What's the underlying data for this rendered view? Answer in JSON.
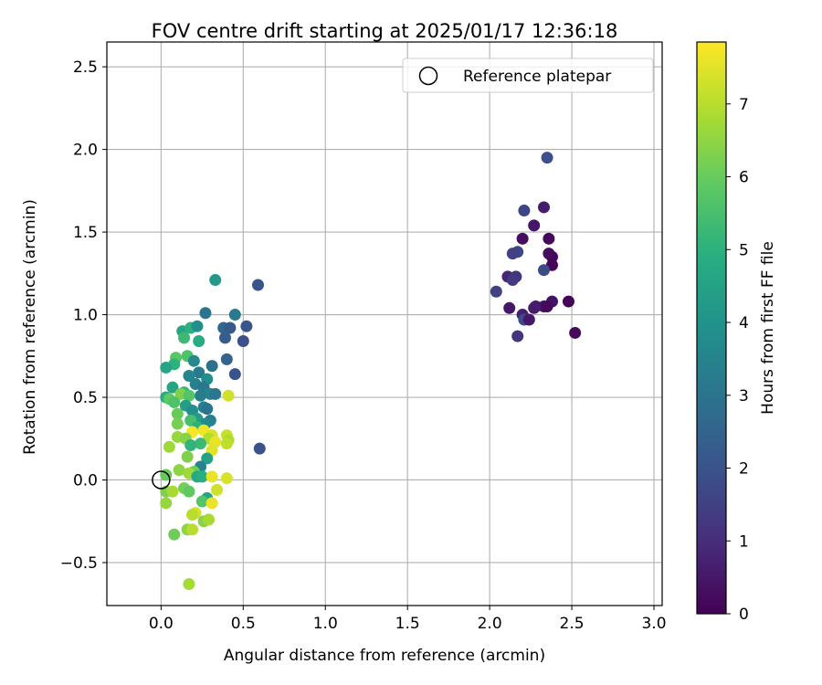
{
  "chart_data": {
    "type": "scatter",
    "title": "FOV centre drift starting at 2025/01/17 12:36:18",
    "xlabel": "Angular distance from reference (arcmin)",
    "ylabel": "Rotation from reference (arcmin)",
    "xlim": [
      -0.33,
      3.05
    ],
    "ylim": [
      -0.76,
      2.65
    ],
    "xticks": [
      0.0,
      0.5,
      1.0,
      1.5,
      2.0,
      2.5,
      3.0
    ],
    "xtick_labels": [
      "0.0",
      "0.5",
      "1.0",
      "1.5",
      "2.0",
      "2.5",
      "3.0"
    ],
    "yticks": [
      -0.5,
      0.0,
      0.5,
      1.0,
      1.5,
      2.0,
      2.5
    ],
    "ytick_labels": [
      "−0.5",
      "0.0",
      "0.5",
      "1.0",
      "1.5",
      "2.0",
      "2.5"
    ],
    "grid": true,
    "legend": {
      "position": "upper-right",
      "entries": [
        "Reference platepar"
      ]
    },
    "reference": {
      "x": 0.0,
      "y": 0.0
    },
    "colorbar": {
      "label": "Hours from first FF file",
      "range": [
        0,
        7.85
      ],
      "ticks": [
        0,
        1,
        2,
        3,
        4,
        5,
        6,
        7
      ],
      "tick_labels": [
        "0",
        "1",
        "2",
        "3",
        "4",
        "5",
        "6",
        "7"
      ],
      "colormap": "viridis"
    },
    "points": [
      [
        2.35,
        1.95,
        1.9
      ],
      [
        2.21,
        1.63,
        1.6
      ],
      [
        2.33,
        1.65,
        0.6
      ],
      [
        2.27,
        1.54,
        0.5
      ],
      [
        2.2,
        1.46,
        0.3
      ],
      [
        2.36,
        1.46,
        0.2
      ],
      [
        2.17,
        1.38,
        1.7
      ],
      [
        2.14,
        1.37,
        1.5
      ],
      [
        2.36,
        1.37,
        0.3
      ],
      [
        2.38,
        1.35,
        0.2
      ],
      [
        2.38,
        1.3,
        0.1
      ],
      [
        2.33,
        1.27,
        1.8
      ],
      [
        2.11,
        1.23,
        0.8
      ],
      [
        2.16,
        1.23,
        1.2
      ],
      [
        2.14,
        1.21,
        1.3
      ],
      [
        2.04,
        1.14,
        1.5
      ],
      [
        2.38,
        1.08,
        0.4
      ],
      [
        2.48,
        1.08,
        0.1
      ],
      [
        2.33,
        1.05,
        0.4
      ],
      [
        2.28,
        1.05,
        0.5
      ],
      [
        2.27,
        1.04,
        0.6
      ],
      [
        2.12,
        1.04,
        0.5
      ],
      [
        2.35,
        1.05,
        0.2
      ],
      [
        2.2,
        1.0,
        0.7
      ],
      [
        2.21,
        0.97,
        1.8
      ],
      [
        2.24,
        0.97,
        0.5
      ],
      [
        2.17,
        0.87,
        1.2
      ],
      [
        2.52,
        0.89,
        0.2
      ],
      [
        0.59,
        1.18,
        2.1
      ],
      [
        0.33,
        1.21,
        4.2
      ],
      [
        0.27,
        1.01,
        3.0
      ],
      [
        0.45,
        1.0,
        3.2
      ],
      [
        0.13,
        0.9,
        4.6
      ],
      [
        0.18,
        0.92,
        5.0
      ],
      [
        0.22,
        0.93,
        3.9
      ],
      [
        0.38,
        0.92,
        2.6
      ],
      [
        0.42,
        0.92,
        2.2
      ],
      [
        0.52,
        0.93,
        2.1
      ],
      [
        0.39,
        0.86,
        2.3
      ],
      [
        0.5,
        0.84,
        1.9
      ],
      [
        0.14,
        0.86,
        5.3
      ],
      [
        0.23,
        0.84,
        4.8
      ],
      [
        0.09,
        0.74,
        5.8
      ],
      [
        0.16,
        0.75,
        5.6
      ],
      [
        0.2,
        0.72,
        3.7
      ],
      [
        0.08,
        0.7,
        5.0
      ],
      [
        0.03,
        0.68,
        4.6
      ],
      [
        0.4,
        0.73,
        2.5
      ],
      [
        0.31,
        0.69,
        2.9
      ],
      [
        0.23,
        0.65,
        3.2
      ],
      [
        0.17,
        0.63,
        3.6
      ],
      [
        0.28,
        0.61,
        3.8
      ],
      [
        0.45,
        0.64,
        2.0
      ],
      [
        0.21,
        0.58,
        3.4
      ],
      [
        0.26,
        0.56,
        3.1
      ],
      [
        0.07,
        0.56,
        4.6
      ],
      [
        0.14,
        0.53,
        5.2
      ],
      [
        0.3,
        0.52,
        3.5
      ],
      [
        0.33,
        0.52,
        3.1
      ],
      [
        0.24,
        0.51,
        3.3
      ],
      [
        0.12,
        0.52,
        6.3
      ],
      [
        0.17,
        0.51,
        5.7
      ],
      [
        0.03,
        0.5,
        4.8
      ],
      [
        0.05,
        0.49,
        5.9
      ],
      [
        0.08,
        0.47,
        5.6
      ],
      [
        0.15,
        0.45,
        4.4
      ],
      [
        0.26,
        0.44,
        3.4
      ],
      [
        0.28,
        0.43,
        3.0
      ],
      [
        0.19,
        0.42,
        3.9
      ],
      [
        0.1,
        0.4,
        6.0
      ],
      [
        0.41,
        0.51,
        7.3
      ],
      [
        0.22,
        0.37,
        4.3
      ],
      [
        0.3,
        0.36,
        3.4
      ],
      [
        0.18,
        0.36,
        5.5
      ],
      [
        0.27,
        0.34,
        3.8
      ],
      [
        0.1,
        0.34,
        6.2
      ],
      [
        0.22,
        0.32,
        5.0
      ],
      [
        0.19,
        0.29,
        7.8
      ],
      [
        0.26,
        0.3,
        7.7
      ],
      [
        0.31,
        0.27,
        7.4
      ],
      [
        0.4,
        0.27,
        7.2
      ],
      [
        0.1,
        0.26,
        6.6
      ],
      [
        0.15,
        0.25,
        6.4
      ],
      [
        0.29,
        0.25,
        6.9
      ],
      [
        0.33,
        0.23,
        7.6
      ],
      [
        0.41,
        0.24,
        6.9
      ],
      [
        0.4,
        0.22,
        7.1
      ],
      [
        0.24,
        0.22,
        5.3
      ],
      [
        0.18,
        0.21,
        5.1
      ],
      [
        0.05,
        0.2,
        6.7
      ],
      [
        0.6,
        0.19,
        2.0
      ],
      [
        0.31,
        0.18,
        7.5
      ],
      [
        0.16,
        0.14,
        6.3
      ],
      [
        0.28,
        0.13,
        4.5
      ],
      [
        0.11,
        0.06,
        6.5
      ],
      [
        0.24,
        0.08,
        3.5
      ],
      [
        0.2,
        0.05,
        6.1
      ],
      [
        0.17,
        0.04,
        6.7
      ],
      [
        0.22,
        0.02,
        4.7
      ],
      [
        0.25,
        0.02,
        4.9
      ],
      [
        0.31,
        0.02,
        7.6
      ],
      [
        0.4,
        0.01,
        7.4
      ],
      [
        0.03,
        0.03,
        6.0
      ],
      [
        0.03,
        -0.07,
        6.3
      ],
      [
        0.07,
        -0.07,
        6.8
      ],
      [
        0.14,
        -0.05,
        6.2
      ],
      [
        0.17,
        -0.07,
        5.9
      ],
      [
        0.34,
        -0.06,
        7.3
      ],
      [
        0.28,
        -0.11,
        4.6
      ],
      [
        0.25,
        -0.13,
        5.7
      ],
      [
        0.03,
        -0.14,
        6.6
      ],
      [
        0.31,
        -0.14,
        7.6
      ],
      [
        0.21,
        -0.2,
        7.4
      ],
      [
        0.19,
        -0.21,
        7.0
      ],
      [
        0.26,
        -0.25,
        6.4
      ],
      [
        0.29,
        -0.24,
        6.8
      ],
      [
        0.16,
        -0.3,
        6.5
      ],
      [
        0.19,
        -0.3,
        7.0
      ],
      [
        0.08,
        -0.33,
        6.1
      ],
      [
        0.17,
        -0.63,
        6.8
      ]
    ]
  }
}
